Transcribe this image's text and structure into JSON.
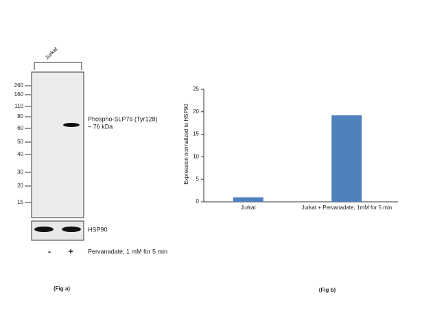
{
  "blot": {
    "lane_label": "Jurkat",
    "markers": [
      260,
      160,
      110,
      80,
      60,
      50,
      40,
      30,
      20,
      15
    ],
    "band_label": "Phospho-SLP76 (Tyr128)",
    "band_size": "~ 76 kDa",
    "loading_label": "HSP90",
    "treatments": [
      "-",
      "+"
    ],
    "treatment_label": "Pervanadate, 1 mM for 5 min",
    "caption": "(Fig a)"
  },
  "chart_data": {
    "type": "bar",
    "caption": "(Fig b)",
    "y_label": "Expression  normalized to HSP90",
    "categories": [
      "Jurkat",
      "Jurkat + Pervanadate, 1mM for 5 min"
    ],
    "values": [
      1,
      19.2
    ],
    "color": "#4f81bd",
    "ylim": [
      0,
      25
    ],
    "yticks": [
      0,
      5,
      10,
      15,
      20,
      25
    ]
  }
}
